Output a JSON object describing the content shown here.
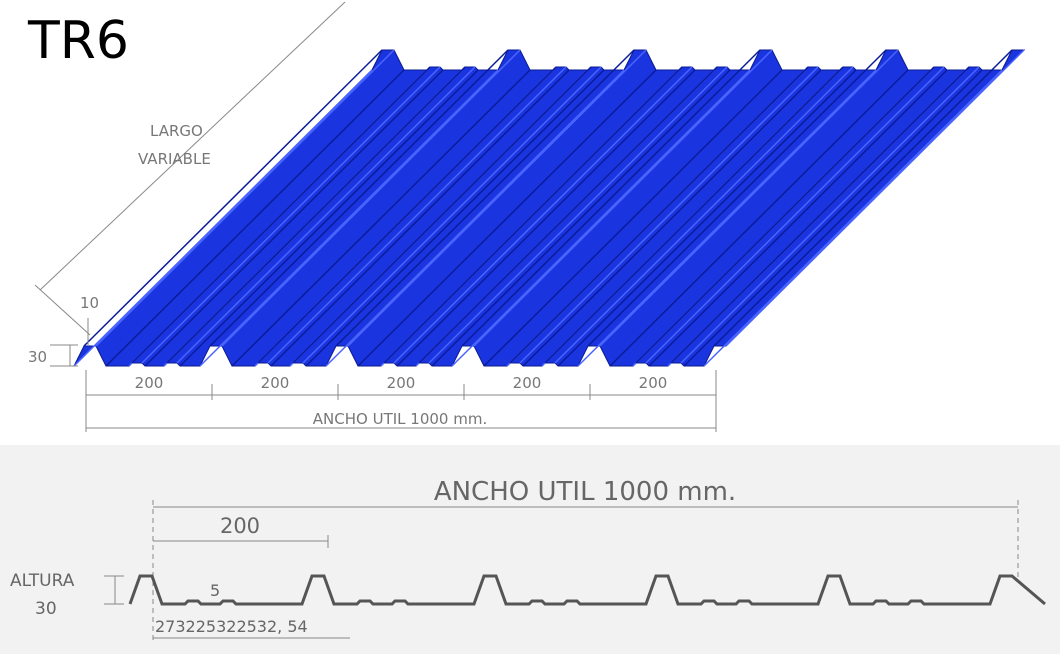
{
  "title": "TR6",
  "top_drawing": {
    "length_label": [
      "LARGO",
      "VARIABLE"
    ],
    "rib_top": "10",
    "height": "30",
    "pitches": [
      "200",
      "200",
      "200",
      "200",
      "200"
    ],
    "width": "ANCHO UTIL 1000 mm."
  },
  "profile": {
    "width": "ANCHO UTIL 1000 mm.",
    "pitch": "200",
    "height_label": [
      "ALTURA",
      "30"
    ],
    "stiffener": "5",
    "segments": "273225322532, 54"
  }
}
